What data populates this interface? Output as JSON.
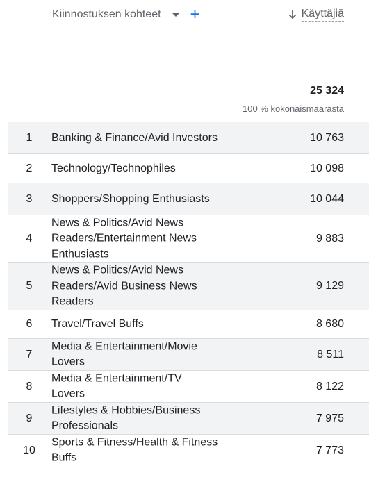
{
  "header": {
    "dimension_label": "Kiinnostuksen kohteet",
    "metric_label": "Käyttäjiä",
    "add_icon": "+",
    "sort_icon": "arrow-down-icon",
    "dropdown_icon": "caret-down-icon"
  },
  "totals": {
    "value": "25 324",
    "subtitle": "100 % kokonaismäärästä"
  },
  "rows": [
    {
      "index": "1",
      "name": "Banking & Finance/Avid Investors",
      "value": "10 763"
    },
    {
      "index": "2",
      "name": "Technology/Technophiles",
      "value": "10 098"
    },
    {
      "index": "3",
      "name": "Shoppers/Shopping Enthusiasts",
      "value": "10 044"
    },
    {
      "index": "4",
      "name": "News & Politics/Avid News Readers/Entertainment News Enthusiasts",
      "value": "9 883"
    },
    {
      "index": "5",
      "name": "News & Politics/Avid News Readers/Avid Business News Readers",
      "value": "9 129"
    },
    {
      "index": "6",
      "name": "Travel/Travel Buffs",
      "value": "8 680"
    },
    {
      "index": "7",
      "name": "Media & Entertainment/Movie Lovers",
      "value": "8 511"
    },
    {
      "index": "8",
      "name": "Media & Entertainment/TV Lovers",
      "value": "8 122"
    },
    {
      "index": "9",
      "name": "Lifestyles & Hobbies/Business Professionals",
      "value": "7 975"
    },
    {
      "index": "10",
      "name": "Sports & Fitness/Health & Fitness Buffs",
      "value": "7 773"
    }
  ],
  "colors": {
    "accent": "#1a73e8",
    "stripe": "#f1f3f4",
    "divider": "#dadce0"
  }
}
